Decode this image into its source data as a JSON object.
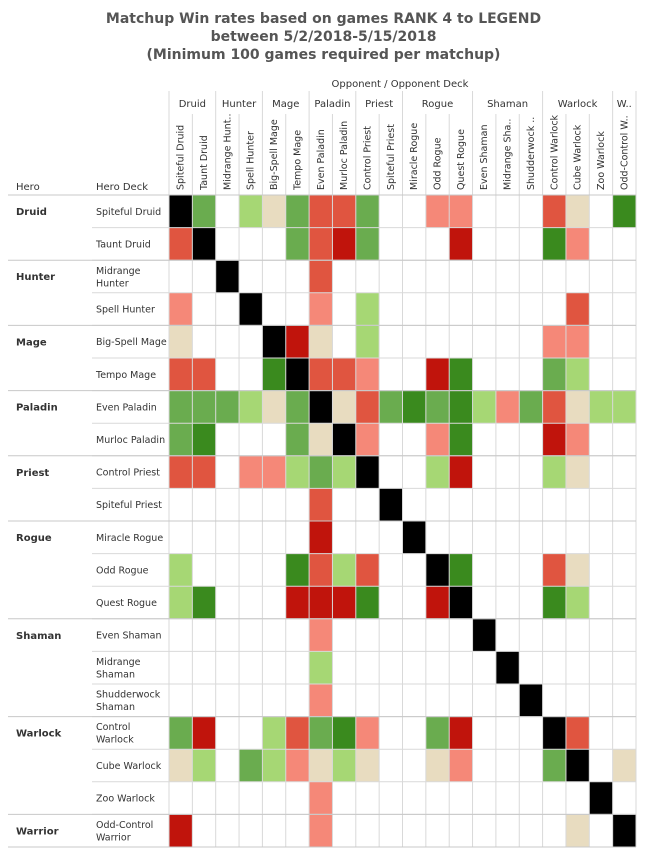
{
  "chart_data": {
    "type": "heatmap",
    "title_lines": [
      "Matchup Win rates based on games RANK 4 to LEGEND",
      "between 5/2/2018-5/15/2018",
      "(Minimum 100 games required per matchup)"
    ],
    "column_header": "Opponent  /  Opponent Deck",
    "row_header_hero": "Hero",
    "row_header_deck": "Hero Deck",
    "column_groups": [
      {
        "label": "Druid",
        "span": 2
      },
      {
        "label": "Hunter",
        "span": 2
      },
      {
        "label": "Mage",
        "span": 2
      },
      {
        "label": "Paladin",
        "span": 2
      },
      {
        "label": "Priest",
        "span": 2
      },
      {
        "label": "Rogue",
        "span": 3
      },
      {
        "label": "Shaman",
        "span": 3
      },
      {
        "label": "Warlock",
        "span": 3
      },
      {
        "label": "W..",
        "span": 1
      }
    ],
    "columns": [
      "Spiteful Druid",
      "Taunt Druid",
      "Midrange Hunt..",
      "Spell Hunter",
      "Big-Spell Mage",
      "Tempo Mage",
      "Even Paladin",
      "Murloc Paladin",
      "Control Priest",
      "Spiteful Priest",
      "Miracle Rogue",
      "Odd Rogue",
      "Quest Rogue",
      "Even Shaman",
      "Midrange Sha..",
      "Shudderwock ..",
      "Control Warlock",
      "Cube Warlock",
      "Zoo Warlock",
      "Odd-Control W.."
    ],
    "row_groups": [
      {
        "label": "Druid",
        "span": 2
      },
      {
        "label": "Hunter",
        "span": 2
      },
      {
        "label": "Mage",
        "span": 2
      },
      {
        "label": "Paladin",
        "span": 2
      },
      {
        "label": "Priest",
        "span": 2
      },
      {
        "label": "Rogue",
        "span": 3
      },
      {
        "label": "Shaman",
        "span": 3
      },
      {
        "label": "Warlock",
        "span": 3
      },
      {
        "label": "Warrior",
        "span": 1
      }
    ],
    "rows": [
      [
        "Spiteful Druid"
      ],
      [
        "Taunt Druid"
      ],
      [
        "Midrange",
        "Hunter"
      ],
      [
        "Spell Hunter"
      ],
      [
        "Big-Spell Mage"
      ],
      [
        "Tempo Mage"
      ],
      [
        "Even Paladin"
      ],
      [
        "Murloc Paladin"
      ],
      [
        "Control Priest"
      ],
      [
        "Spiteful Priest"
      ],
      [
        "Miracle Rogue"
      ],
      [
        "Odd Rogue"
      ],
      [
        "Quest Rogue"
      ],
      [
        "Even Shaman"
      ],
      [
        "Midrange",
        "Shaman"
      ],
      [
        "Shudderwock",
        "Shaman"
      ],
      [
        "Control",
        "Warlock"
      ],
      [
        "Cube Warlock"
      ],
      [
        "Zoo Warlock"
      ],
      [
        "Odd-Control",
        "Warrior"
      ]
    ],
    "legend_colors": {
      "X": "#000000",
      "G3": "#3a8a1e",
      "G2": "#6aac4f",
      "G1": "#a6d774",
      "N": "#e8dcc0",
      "R1": "#f58878",
      "R2": "#e05540",
      "R3": "#c0140c",
      "E": "#ffffff"
    },
    "cells": [
      [
        "X",
        "G2",
        "E",
        "G1",
        "N",
        "G2",
        "R2",
        "R2",
        "G2",
        "E",
        "E",
        "R1",
        "R1",
        "E",
        "E",
        "E",
        "R2",
        "N",
        "E",
        "G3"
      ],
      [
        "R2",
        "X",
        "E",
        "E",
        "E",
        "G2",
        "R2",
        "R3",
        "G2",
        "E",
        "E",
        "E",
        "R3",
        "E",
        "E",
        "E",
        "G3",
        "R1",
        "E",
        "E"
      ],
      [
        "E",
        "E",
        "X",
        "E",
        "E",
        "E",
        "R2",
        "E",
        "E",
        "E",
        "E",
        "E",
        "E",
        "E",
        "E",
        "E",
        "E",
        "E",
        "E",
        "E"
      ],
      [
        "R1",
        "E",
        "E",
        "X",
        "E",
        "E",
        "R1",
        "E",
        "G1",
        "E",
        "E",
        "E",
        "E",
        "E",
        "E",
        "E",
        "E",
        "R2",
        "E",
        "E"
      ],
      [
        "N",
        "E",
        "E",
        "E",
        "X",
        "R3",
        "N",
        "E",
        "G1",
        "E",
        "E",
        "E",
        "E",
        "E",
        "E",
        "E",
        "R1",
        "R1",
        "E",
        "E"
      ],
      [
        "R2",
        "R2",
        "E",
        "E",
        "G3",
        "X",
        "R2",
        "R2",
        "R1",
        "E",
        "E",
        "R3",
        "G3",
        "E",
        "E",
        "E",
        "G2",
        "G1",
        "E",
        "E"
      ],
      [
        "G2",
        "G2",
        "G2",
        "G1",
        "N",
        "G2",
        "X",
        "N",
        "R2",
        "G2",
        "G3",
        "G2",
        "G3",
        "G1",
        "R1",
        "G2",
        "R2",
        "N",
        "G1",
        "G1"
      ],
      [
        "G2",
        "G3",
        "E",
        "E",
        "E",
        "G2",
        "N",
        "X",
        "R1",
        "E",
        "E",
        "R1",
        "G3",
        "E",
        "E",
        "E",
        "R3",
        "R1",
        "E",
        "E"
      ],
      [
        "R2",
        "R2",
        "E",
        "R1",
        "R1",
        "G1",
        "G2",
        "G1",
        "X",
        "E",
        "E",
        "G1",
        "R3",
        "E",
        "E",
        "E",
        "G1",
        "N",
        "E",
        "E"
      ],
      [
        "E",
        "E",
        "E",
        "E",
        "E",
        "E",
        "R2",
        "E",
        "E",
        "X",
        "E",
        "E",
        "E",
        "E",
        "E",
        "E",
        "E",
        "E",
        "E",
        "E"
      ],
      [
        "E",
        "E",
        "E",
        "E",
        "E",
        "E",
        "R3",
        "E",
        "E",
        "E",
        "X",
        "E",
        "E",
        "E",
        "E",
        "E",
        "E",
        "E",
        "E",
        "E"
      ],
      [
        "G1",
        "E",
        "E",
        "E",
        "E",
        "G3",
        "R2",
        "G1",
        "R2",
        "E",
        "E",
        "X",
        "G3",
        "E",
        "E",
        "E",
        "R2",
        "N",
        "E",
        "E"
      ],
      [
        "G1",
        "G3",
        "E",
        "E",
        "E",
        "R3",
        "R3",
        "R3",
        "G3",
        "E",
        "E",
        "R3",
        "X",
        "E",
        "E",
        "E",
        "G3",
        "G1",
        "E",
        "E"
      ],
      [
        "E",
        "E",
        "E",
        "E",
        "E",
        "E",
        "R1",
        "E",
        "E",
        "E",
        "E",
        "E",
        "E",
        "X",
        "E",
        "E",
        "E",
        "E",
        "E",
        "E"
      ],
      [
        "E",
        "E",
        "E",
        "E",
        "E",
        "E",
        "G1",
        "E",
        "E",
        "E",
        "E",
        "E",
        "E",
        "E",
        "X",
        "E",
        "E",
        "E",
        "E",
        "E"
      ],
      [
        "E",
        "E",
        "E",
        "E",
        "E",
        "E",
        "R1",
        "E",
        "E",
        "E",
        "E",
        "E",
        "E",
        "E",
        "E",
        "X",
        "E",
        "E",
        "E",
        "E"
      ],
      [
        "G2",
        "R3",
        "E",
        "E",
        "G1",
        "R2",
        "G2",
        "G3",
        "R1",
        "E",
        "E",
        "G2",
        "R3",
        "E",
        "E",
        "E",
        "X",
        "R2",
        "E",
        "E"
      ],
      [
        "N",
        "G1",
        "E",
        "G2",
        "G1",
        "R1",
        "N",
        "G1",
        "N",
        "E",
        "E",
        "N",
        "R1",
        "E",
        "E",
        "E",
        "G2",
        "X",
        "E",
        "N"
      ],
      [
        "E",
        "E",
        "E",
        "E",
        "E",
        "E",
        "R1",
        "E",
        "E",
        "E",
        "E",
        "E",
        "E",
        "E",
        "E",
        "E",
        "E",
        "E",
        "X",
        "E"
      ],
      [
        "R3",
        "E",
        "E",
        "E",
        "E",
        "E",
        "R1",
        "E",
        "E",
        "E",
        "E",
        "E",
        "E",
        "E",
        "E",
        "E",
        "E",
        "N",
        "E",
        "X"
      ]
    ]
  }
}
